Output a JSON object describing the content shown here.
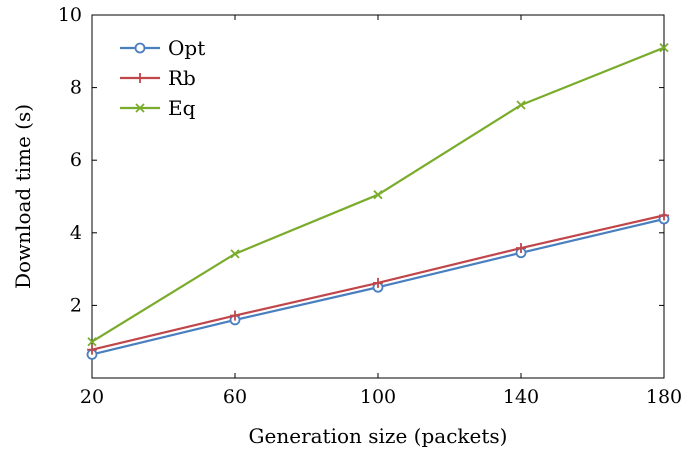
{
  "chart_data": {
    "type": "line",
    "title": "",
    "xlabel": "Generation size (packets)",
    "ylabel": "Download time (s)",
    "x": [
      20,
      60,
      100,
      140,
      180
    ],
    "xlim": [
      20,
      180
    ],
    "ylim": [
      0,
      10
    ],
    "xticks": [
      20,
      60,
      100,
      140,
      180
    ],
    "yticks": [
      2,
      4,
      6,
      8,
      10
    ],
    "grid": false,
    "legend_position": "top-left",
    "series": [
      {
        "name": "Opt",
        "values": [
          0.65,
          1.6,
          2.5,
          3.45,
          4.38
        ],
        "color": "#4a7fbf",
        "marker": "circle"
      },
      {
        "name": "Rb",
        "values": [
          0.78,
          1.72,
          2.62,
          3.58,
          4.48
        ],
        "color": "#c0464a",
        "marker": "plus"
      },
      {
        "name": "Eq",
        "values": [
          1.0,
          3.42,
          5.05,
          7.52,
          9.1
        ],
        "color": "#7aac2c",
        "marker": "x"
      }
    ]
  }
}
